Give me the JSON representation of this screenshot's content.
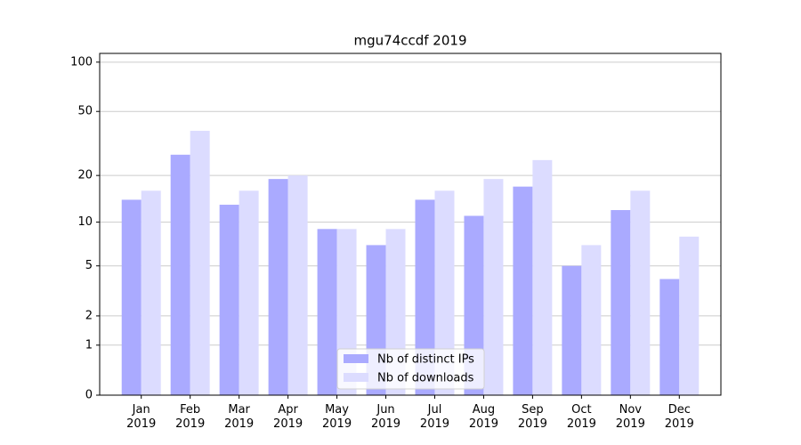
{
  "chart_data": {
    "type": "bar",
    "title": "mgu74ccdf 2019",
    "categories": [
      "Jan\n2019",
      "Feb\n2019",
      "Mar\n2019",
      "Apr\n2019",
      "May\n2019",
      "Jun\n2019",
      "Jul\n2019",
      "Aug\n2019",
      "Sep\n2019",
      "Oct\n2019",
      "Nov\n2019",
      "Dec\n2019"
    ],
    "series": [
      {
        "name": "Nb of distinct IPs",
        "color": "#aaaaff",
        "values": [
          14,
          27,
          13,
          19,
          9,
          7,
          14,
          11,
          17,
          5,
          12,
          4
        ]
      },
      {
        "name": "Nb of downloads",
        "color": "#dcdcff",
        "values": [
          16,
          38,
          16,
          20,
          9,
          9,
          16,
          19,
          25,
          7,
          16,
          8
        ]
      }
    ],
    "yscale": "log1p",
    "ylim": [
      0,
      113
    ],
    "yticks": [
      0,
      1,
      2,
      5,
      10,
      20,
      50,
      100
    ],
    "grid": true,
    "legend": "lower center"
  }
}
